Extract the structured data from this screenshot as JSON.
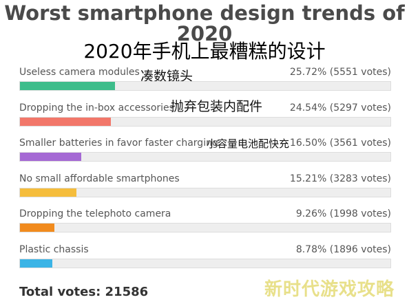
{
  "title": "Worst smartphone design trends of 2020",
  "cn_title": "2020年手机上最糟糕的设计",
  "cn_overlays": [
    {
      "text": "凑数镜头"
    },
    {
      "text": "抛弃包装内配件"
    },
    {
      "text": "小容量电池配快充"
    }
  ],
  "total": "Total votes: 21586",
  "watermark": "新时代游戏攻略",
  "chart_data": {
    "type": "bar",
    "title": "Worst smartphone design trends of 2020",
    "orientation": "horizontal",
    "categories": [
      "Useless camera modules",
      "Dropping the in-box accessories",
      "Smaller batteries in favor faster charging",
      "No small affordable smartphones",
      "Dropping the telephoto camera",
      "Plastic chassis"
    ],
    "values": [
      25.72,
      24.54,
      16.5,
      15.21,
      9.26,
      8.78
    ],
    "votes": [
      5551,
      5297,
      3561,
      3283,
      1998,
      1896
    ],
    "value_labels": [
      "25.72% (5551 votes)",
      "24.54% (5297 votes)",
      "16.50% (3561 votes)",
      "15.21% (3283 votes)",
      "9.26% (1998 votes)",
      "8.78% (1896 votes)"
    ],
    "colors": [
      "#3dbd8b",
      "#f2776a",
      "#a569d4",
      "#f5bd3c",
      "#f18b1e",
      "#3bb4e6"
    ],
    "xlim": [
      0,
      100
    ]
  }
}
